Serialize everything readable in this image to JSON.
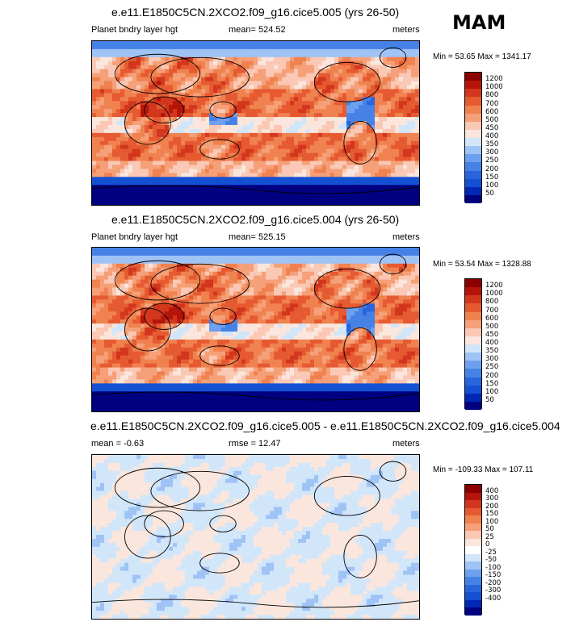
{
  "season": "MAM",
  "panels": [
    {
      "title": "e.e11.E1850C5CN.2XCO2.f09_g16.cice5.005 (yrs 26-50)",
      "left_label": "Planet bndry layer hgt",
      "center_label": "mean= 524.52",
      "right_label": "meters",
      "minmax": "Min =  53.65 Max = 1341.17",
      "colorbar_labels": [
        "1200",
        "1000",
        "800",
        "700",
        "600",
        "500",
        "450",
        "400",
        "350",
        "300",
        "250",
        "200",
        "150",
        "100",
        "50"
      ]
    },
    {
      "title": "e.e11.E1850C5CN.2XCO2.f09_g16.cice5.004 (yrs 26-50)",
      "left_label": "Planet bndry layer hgt",
      "center_label": "mean= 525.15",
      "right_label": "meters",
      "minmax": "Min =  53.54 Max = 1328.88",
      "colorbar_labels": [
        "1200",
        "1000",
        "800",
        "700",
        "600",
        "500",
        "450",
        "400",
        "350",
        "300",
        "250",
        "200",
        "150",
        "100",
        "50"
      ]
    },
    {
      "title": "e.e11.E1850C5CN.2XCO2.f09_g16.cice5.005 - e.e11.E1850C5CN.2XCO2.f09_g16.cice5.004",
      "left_label": "mean =  -0.63",
      "center_label": "rmse =  12.47",
      "right_label": "meters",
      "minmax": "Min = -109.33 Max = 107.11",
      "colorbar_labels": [
        "400",
        "300",
        "200",
        "150",
        "100",
        "50",
        "25",
        "0",
        "-25",
        "-50",
        "-100",
        "-150",
        "-200",
        "-300",
        "-400"
      ]
    }
  ],
  "colors": {
    "abs_scale": [
      "#000080",
      "#0028b4",
      "#1450d2",
      "#2864dc",
      "#4682e6",
      "#6ea0f0",
      "#a0c3f5",
      "#d2e6fa",
      "#fae6dc",
      "#fac8b4",
      "#f5a078",
      "#f08250",
      "#e65a32",
      "#d2371e",
      "#b4140a",
      "#8c0000"
    ],
    "diff_scale": [
      "#000080",
      "#0028b4",
      "#1450d2",
      "#2864dc",
      "#4682e6",
      "#6ea0f0",
      "#a0c3f5",
      "#d2e6fa",
      "#ffffff",
      "#fae6dc",
      "#fac8b4",
      "#f5a078",
      "#f08250",
      "#e65a32",
      "#d2371e",
      "#b4140a",
      "#8c0000"
    ]
  },
  "chart_data": [
    {
      "type": "heatmap",
      "title": "e.e11.E1850C5CN.2XCO2.f09_g16.cice5.005 (yrs 26-50)",
      "variable": "Planet bndry layer hgt",
      "units": "meters",
      "mean": 524.52,
      "min": 53.65,
      "max": 1341.17,
      "levels": [
        50,
        100,
        150,
        200,
        250,
        300,
        350,
        400,
        450,
        500,
        600,
        700,
        800,
        1000,
        1200
      ],
      "field_description_regions": {
        "polar_antarctic": 75,
        "polar_arctic": 225,
        "subtropical_oceans": 750,
        "equatorial_band": 475,
        "sahara_arabia": 1100
      }
    },
    {
      "type": "heatmap",
      "title": "e.e11.E1850C5CN.2XCO2.f09_g16.cice5.004 (yrs 26-50)",
      "variable": "Planet bndry layer hgt",
      "units": "meters",
      "mean": 525.15,
      "min": 53.54,
      "max": 1328.88,
      "levels": [
        50,
        100,
        150,
        200,
        250,
        300,
        350,
        400,
        450,
        500,
        600,
        700,
        800,
        1000,
        1200
      ]
    },
    {
      "type": "heatmap",
      "title": "e.e11.E1850C5CN.2XCO2.f09_g16.cice5.005 - e.e11.E1850C5CN.2XCO2.f09_g16.cice5.004",
      "units": "meters",
      "mean": -0.63,
      "rmse": 12.47,
      "min": -109.33,
      "max": 107.11,
      "levels": [
        -400,
        -300,
        -200,
        -150,
        -100,
        -50,
        -25,
        0,
        25,
        50,
        100,
        150,
        200,
        300,
        400
      ]
    }
  ]
}
